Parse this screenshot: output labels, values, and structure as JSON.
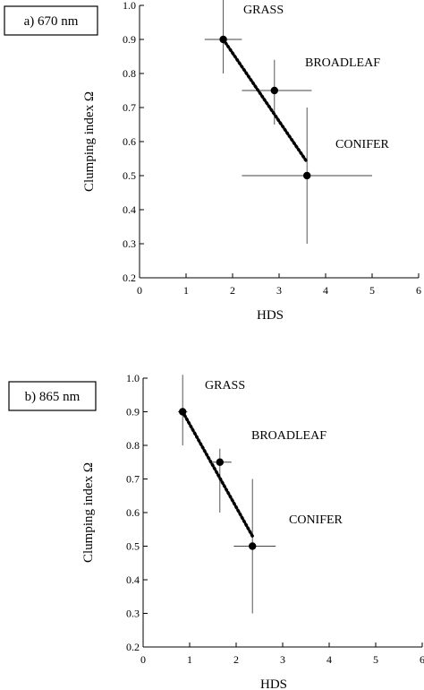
{
  "chart_data": [
    {
      "type": "scatter",
      "panel_label": "a) 670 nm",
      "xlabel": "HDS",
      "ylabel": "Clumping index Ω",
      "xlim": [
        0,
        6
      ],
      "ylim": [
        0.2,
        1.0
      ],
      "xticks": [
        "0",
        "1",
        "2",
        "3",
        "4",
        "5",
        "6"
      ],
      "yticks": [
        "0.2",
        "0.3",
        "0.4",
        "0.5",
        "0.6",
        "0.7",
        "0.8",
        "0.9",
        "1.0"
      ],
      "points": [
        {
          "label": "GRASS",
          "x": 1.8,
          "y": 0.9,
          "xerr": [
            1.4,
            2.2
          ],
          "yerr": [
            0.8,
            1.05
          ]
        },
        {
          "label": "BROADLEAF",
          "x": 2.9,
          "y": 0.75,
          "xerr": [
            2.2,
            3.7
          ],
          "yerr": [
            0.65,
            0.84
          ]
        },
        {
          "label": "CONIFER",
          "x": 3.6,
          "y": 0.5,
          "xerr": [
            2.2,
            5.0
          ],
          "yerr": [
            0.3,
            0.7
          ]
        }
      ],
      "trend_line": {
        "x": [
          1.8,
          3.6
        ],
        "y": [
          0.9,
          0.54
        ]
      },
      "grid": false
    },
    {
      "type": "scatter",
      "panel_label": "b) 865 nm",
      "xlabel": "HDS",
      "ylabel": "Clumping index Ω",
      "xlim": [
        0,
        6
      ],
      "ylim": [
        0.2,
        1.0
      ],
      "xticks": [
        "0",
        "1",
        "2",
        "3",
        "4",
        "5",
        "6"
      ],
      "yticks": [
        "0.2",
        "0.3",
        "0.4",
        "0.5",
        "0.6",
        "0.7",
        "0.8",
        "0.9",
        "1.0"
      ],
      "points": [
        {
          "label": "GRASS",
          "x": 0.85,
          "y": 0.9,
          "xerr": [
            0.75,
            0.95
          ],
          "yerr": [
            0.8,
            1.01
          ]
        },
        {
          "label": "BROADLEAF",
          "x": 1.65,
          "y": 0.75,
          "xerr": [
            1.5,
            1.9
          ],
          "yerr": [
            0.6,
            0.79
          ]
        },
        {
          "label": "CONIFER",
          "x": 2.35,
          "y": 0.5,
          "xerr": [
            1.95,
            2.85
          ],
          "yerr": [
            0.3,
            0.7
          ]
        }
      ],
      "trend_line": {
        "x": [
          0.85,
          2.35
        ],
        "y": [
          0.9,
          0.53
        ]
      },
      "grid": false
    }
  ]
}
